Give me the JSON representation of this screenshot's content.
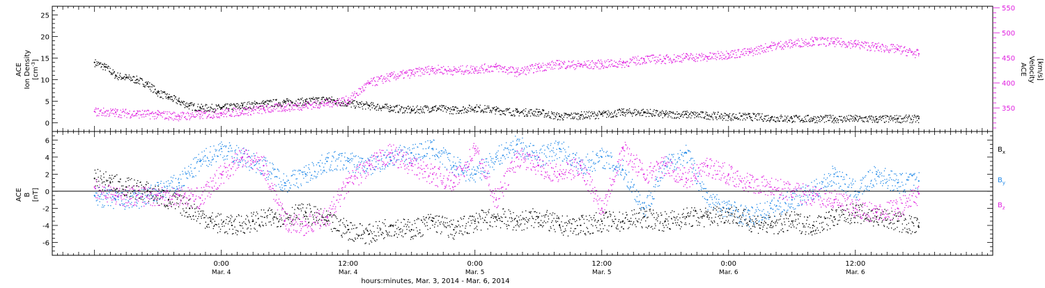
{
  "chart_data": [
    {
      "type": "scatter",
      "panel": "top",
      "left_axis": {
        "label_lines": [
          "ACE",
          "Ion Density"
        ],
        "unit_pre": "[cm",
        "unit_sup": "-3",
        "unit_post": "]",
        "ylim": [
          -2,
          27
        ],
        "ticks": [
          0,
          5,
          10,
          15,
          20,
          25
        ],
        "tick_labels": [
          "0",
          "5",
          "10",
          "15",
          "20",
          "25"
        ]
      },
      "right_axis": {
        "label_lines": [
          "ACE",
          "Velocity",
          "[km/s]"
        ],
        "ylim": [
          303,
          553
        ],
        "ticks": [
          350,
          400,
          450,
          500,
          550
        ],
        "tick_labels": [
          "350",
          "400",
          "450",
          "500",
          "550"
        ],
        "color": "#e020e0"
      },
      "series": [
        {
          "color": "#000000",
          "axis": "left",
          "points": [
            [
              0,
              14
            ],
            [
              2,
              13
            ],
            [
              4,
              11
            ],
            [
              6,
              10.5
            ],
            [
              8,
              10
            ],
            [
              10,
              9
            ],
            [
              12,
              7
            ],
            [
              14,
              6
            ],
            [
              16,
              5
            ],
            [
              18,
              4
            ],
            [
              20,
              3.5
            ],
            [
              24,
              3.5
            ],
            [
              28,
              4
            ],
            [
              32,
              4.5
            ],
            [
              36,
              4.8
            ],
            [
              40,
              5
            ],
            [
              44,
              5.5
            ],
            [
              48,
              4.5
            ],
            [
              52,
              4
            ],
            [
              56,
              3.5
            ],
            [
              60,
              3
            ],
            [
              64,
              3.5
            ],
            [
              68,
              3
            ],
            [
              72,
              3.5
            ],
            [
              76,
              3
            ],
            [
              80,
              2.5
            ],
            [
              84,
              2.5
            ],
            [
              88,
              1.5
            ],
            [
              92,
              1.8
            ],
            [
              96,
              2
            ],
            [
              100,
              2.5
            ],
            [
              104,
              2.5
            ],
            [
              108,
              2
            ],
            [
              112,
              2
            ],
            [
              116,
              1.8
            ],
            [
              120,
              1.5
            ],
            [
              124,
              1.5
            ],
            [
              128,
              1.2
            ],
            [
              132,
              1
            ],
            [
              136,
              1
            ],
            [
              140,
              1
            ],
            [
              144,
              1
            ],
            [
              148,
              0.9
            ],
            [
              152,
              1
            ],
            [
              156,
              1
            ]
          ]
        },
        {
          "color": "#e020e0",
          "axis": "right",
          "points": [
            [
              0,
              343
            ],
            [
              4,
              341
            ],
            [
              8,
              339
            ],
            [
              12,
              337
            ],
            [
              16,
              334
            ],
            [
              20,
              337
            ],
            [
              24,
              340
            ],
            [
              28,
              344
            ],
            [
              32,
              348
            ],
            [
              36,
              352
            ],
            [
              40,
              356
            ],
            [
              44,
              360
            ],
            [
              48,
              366
            ],
            [
              52,
              400
            ],
            [
              56,
              413
            ],
            [
              60,
              420
            ],
            [
              64,
              428
            ],
            [
              68,
              425
            ],
            [
              72,
              428
            ],
            [
              76,
              432
            ],
            [
              80,
              422
            ],
            [
              84,
              432
            ],
            [
              88,
              438
            ],
            [
              92,
              436
            ],
            [
              96,
              438
            ],
            [
              100,
              440
            ],
            [
              104,
              448
            ],
            [
              108,
              448
            ],
            [
              112,
              452
            ],
            [
              116,
              452
            ],
            [
              120,
              458
            ],
            [
              124,
              462
            ],
            [
              128,
              474
            ],
            [
              132,
              479
            ],
            [
              136,
              484
            ],
            [
              140,
              482
            ],
            [
              144,
              478
            ],
            [
              148,
              472
            ],
            [
              152,
              468
            ],
            [
              156,
              458
            ]
          ]
        }
      ]
    },
    {
      "type": "scatter",
      "panel": "bottom",
      "left_axis": {
        "label_lines": [
          "ACE",
          "B"
        ],
        "unit": "[nT]",
        "ylim": [
          -7.5,
          7
        ],
        "ticks": [
          -6,
          -4,
          -2,
          0,
          2,
          4,
          6
        ],
        "tick_labels": [
          "-6",
          "-4",
          "-2",
          "0",
          "2",
          "4",
          "6"
        ]
      },
      "zero_line": true,
      "series": [
        {
          "name": "B",
          "sub": "x",
          "color": "#000000",
          "points": [
            [
              0,
              1.5
            ],
            [
              3,
              1
            ],
            [
              6,
              0.5
            ],
            [
              10,
              0
            ],
            [
              14,
              -1
            ],
            [
              18,
              -2
            ],
            [
              22,
              -3.5
            ],
            [
              26,
              -4
            ],
            [
              30,
              -3.5
            ],
            [
              34,
              -3
            ],
            [
              40,
              -2.5
            ],
            [
              44,
              -3.5
            ],
            [
              48,
              -4.5
            ],
            [
              52,
              -5
            ],
            [
              56,
              -4
            ],
            [
              60,
              -4.5
            ],
            [
              64,
              -3.5
            ],
            [
              68,
              -4.5
            ],
            [
              72,
              -3.5
            ],
            [
              76,
              -3
            ],
            [
              80,
              -3.5
            ],
            [
              84,
              -3
            ],
            [
              88,
              -4
            ],
            [
              92,
              -4
            ],
            [
              96,
              -3.5
            ],
            [
              100,
              -3.5
            ],
            [
              104,
              -3
            ],
            [
              108,
              -3.5
            ],
            [
              112,
              -3
            ],
            [
              116,
              -3
            ],
            [
              120,
              -2.5
            ],
            [
              124,
              -3.5
            ],
            [
              128,
              -4
            ],
            [
              132,
              -3.5
            ],
            [
              136,
              -4
            ],
            [
              140,
              -3
            ],
            [
              144,
              -2.5
            ],
            [
              148,
              -3
            ],
            [
              152,
              -3.5
            ],
            [
              156,
              -4.2
            ]
          ]
        },
        {
          "name": "B",
          "sub": "y",
          "color": "#1f88e8",
          "points": [
            [
              0,
              -0.5
            ],
            [
              4,
              -1
            ],
            [
              8,
              -1
            ],
            [
              12,
              0
            ],
            [
              16,
              1
            ],
            [
              20,
              3.5
            ],
            [
              24,
              5
            ],
            [
              28,
              4
            ],
            [
              32,
              3
            ],
            [
              36,
              1
            ],
            [
              40,
              2
            ],
            [
              44,
              3.5
            ],
            [
              48,
              3.5
            ],
            [
              52,
              3
            ],
            [
              56,
              4
            ],
            [
              60,
              4.5
            ],
            [
              64,
              5
            ],
            [
              68,
              3
            ],
            [
              72,
              2
            ],
            [
              76,
              4
            ],
            [
              80,
              5.5
            ],
            [
              84,
              4
            ],
            [
              88,
              5
            ],
            [
              92,
              3
            ],
            [
              96,
              4
            ],
            [
              100,
              2.5
            ],
            [
              104,
              -2
            ],
            [
              108,
              3
            ],
            [
              112,
              4.5
            ],
            [
              116,
              -1
            ],
            [
              120,
              -2
            ],
            [
              124,
              -3
            ],
            [
              128,
              -2
            ],
            [
              132,
              -1
            ],
            [
              136,
              0
            ],
            [
              140,
              2
            ],
            [
              144,
              0
            ],
            [
              148,
              2
            ],
            [
              152,
              1
            ],
            [
              156,
              1.2
            ]
          ]
        },
        {
          "name": "B",
          "sub": "z",
          "color": "#e020e0",
          "points": [
            [
              0,
              0.5
            ],
            [
              4,
              -0.5
            ],
            [
              8,
              -0.5
            ],
            [
              12,
              -0.5
            ],
            [
              16,
              -0.5
            ],
            [
              20,
              -0.8
            ],
            [
              24,
              2
            ],
            [
              28,
              4
            ],
            [
              32,
              3
            ],
            [
              36,
              -3.5
            ],
            [
              40,
              -4
            ],
            [
              44,
              -3
            ],
            [
              48,
              1
            ],
            [
              52,
              3
            ],
            [
              56,
              4.5
            ],
            [
              60,
              3
            ],
            [
              64,
              2
            ],
            [
              68,
              1
            ],
            [
              72,
              5
            ],
            [
              76,
              -1
            ],
            [
              80,
              4
            ],
            [
              84,
              3
            ],
            [
              88,
              2
            ],
            [
              92,
              3
            ],
            [
              96,
              -2
            ],
            [
              100,
              5
            ],
            [
              104,
              2
            ],
            [
              108,
              3
            ],
            [
              112,
              1.5
            ],
            [
              116,
              3
            ],
            [
              120,
              2
            ],
            [
              124,
              1
            ],
            [
              128,
              0.5
            ],
            [
              132,
              0
            ],
            [
              136,
              -0.5
            ],
            [
              140,
              -1
            ],
            [
              144,
              -2
            ],
            [
              148,
              -2.5
            ],
            [
              152,
              -2
            ],
            [
              156,
              -0.3
            ]
          ]
        }
      ]
    }
  ],
  "x_axis": {
    "xlim": [
      -8,
      170
    ],
    "major_ticks": [
      0,
      24,
      48,
      72,
      96,
      120,
      144
    ],
    "tick_time_labels": [
      "",
      "0:00",
      "12:00",
      "0:00",
      "12:00",
      "0:00",
      "12:00"
    ],
    "tick_date_labels": [
      "",
      "Mar. 4",
      "Mar. 4",
      "Mar. 5",
      "Mar. 5",
      "Mar. 6",
      "Mar. 6"
    ],
    "minor_step": 1,
    "mid_step": 3,
    "xlabel": "hours:minutes, Mar.  3, 2014 - Mar.  6, 2014"
  }
}
